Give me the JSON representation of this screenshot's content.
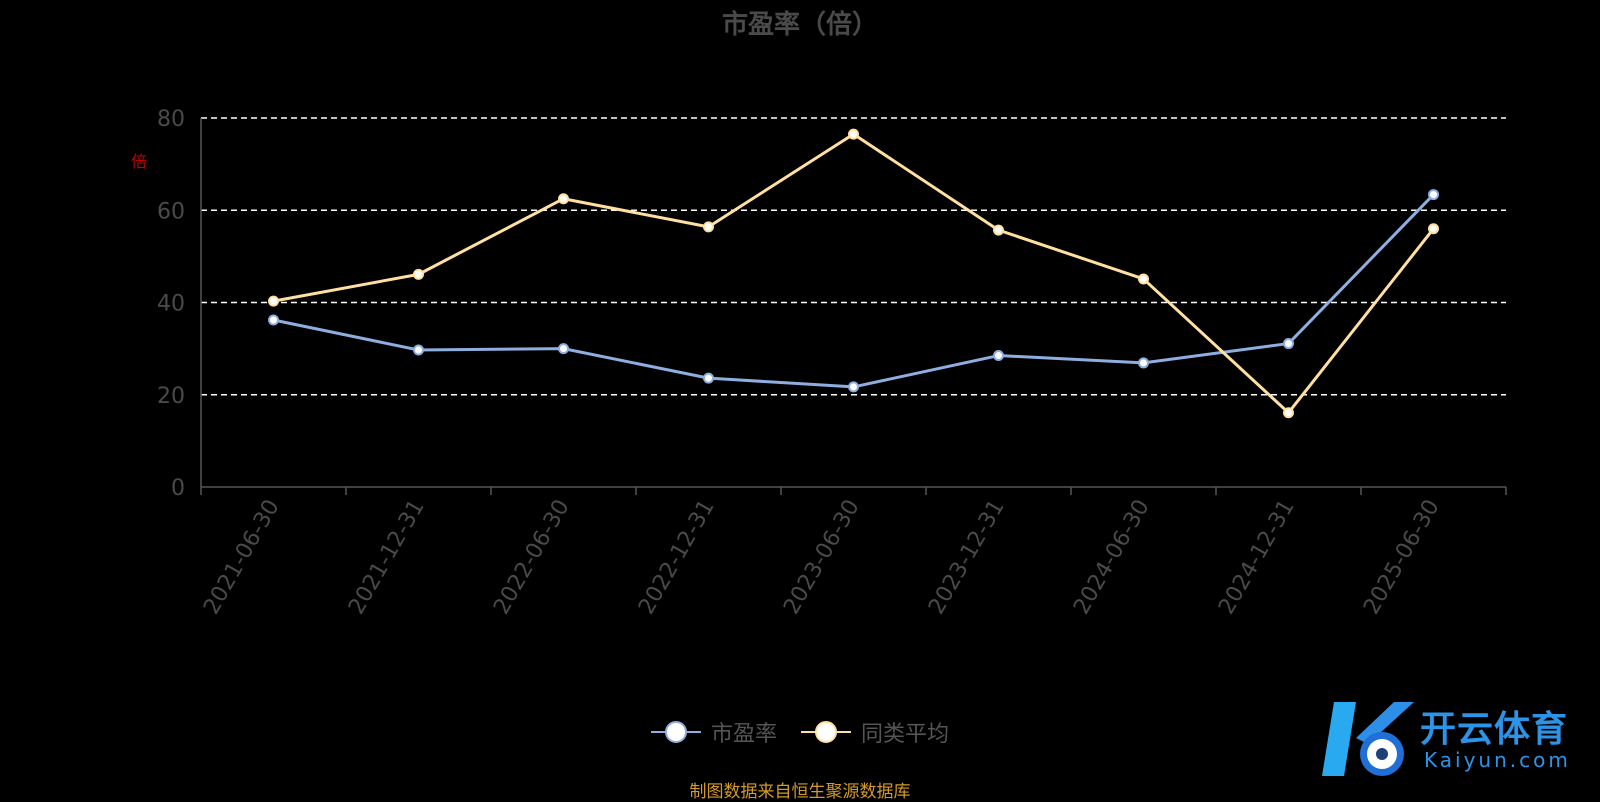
{
  "chart_data": {
    "type": "line",
    "title": "市盈率（倍）",
    "ylabel": "倍",
    "x": [
      "2021-06-30",
      "2021-12-31",
      "2022-06-30",
      "2022-12-31",
      "2023-06-30",
      "2023-12-31",
      "2024-06-30",
      "2024-12-31",
      "2025-06-30"
    ],
    "ylim": [
      0,
      80
    ],
    "yticks": [
      0,
      20,
      40,
      60,
      80
    ],
    "grid": true,
    "legend_position": "bottom",
    "series": [
      {
        "name": "市盈率",
        "color": "#8eaee0",
        "values": [
          36.2,
          29.7,
          30.0,
          23.6,
          21.7,
          28.5,
          26.9,
          31.1,
          63.4
        ]
      },
      {
        "name": "同类平均",
        "color": "#ffe0a0",
        "values": [
          40.3,
          46.1,
          62.5,
          56.4,
          76.5,
          55.7,
          45.1,
          16.1,
          56.0
        ]
      }
    ]
  },
  "source_note": "制图数据来自恒生聚源数据库",
  "watermark": {
    "text": "开云体育",
    "sub": "Kaiyun.com"
  },
  "colors": {
    "background": "#000000",
    "axis": "#555555",
    "grid": "#ffffff",
    "tick_text": "#4a4a4a"
  }
}
